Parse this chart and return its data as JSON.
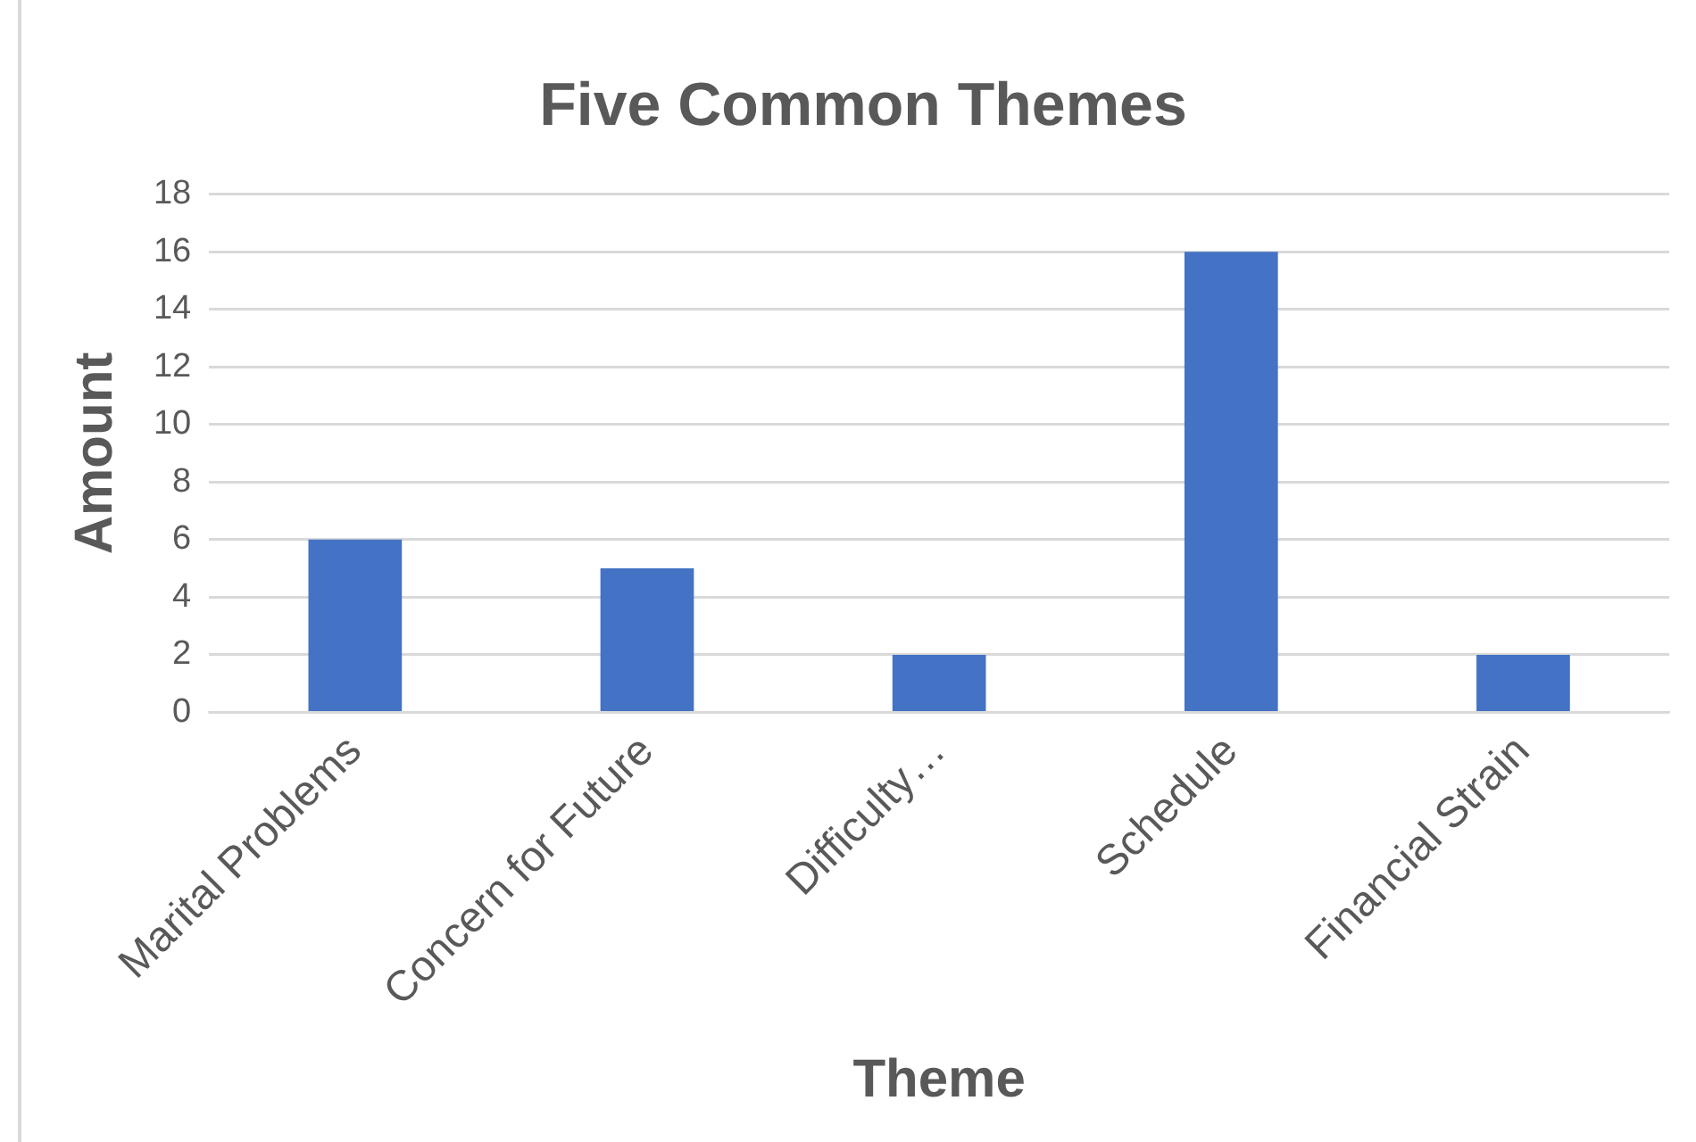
{
  "chart_data": {
    "type": "bar",
    "title": "Five Common Themes",
    "xlabel": "Theme",
    "ylabel": "Amount",
    "categories": [
      "Marital Problems",
      "Concern for Future",
      "Difficulty…",
      "Schedule",
      "Financial Strain"
    ],
    "values": [
      6,
      5,
      2,
      16,
      2
    ],
    "color": "#4472c4",
    "ylim": [
      0,
      18
    ],
    "yticks": [
      0,
      2,
      4,
      6,
      8,
      10,
      12,
      14,
      16,
      18
    ],
    "grid": "y",
    "legend": false
  }
}
